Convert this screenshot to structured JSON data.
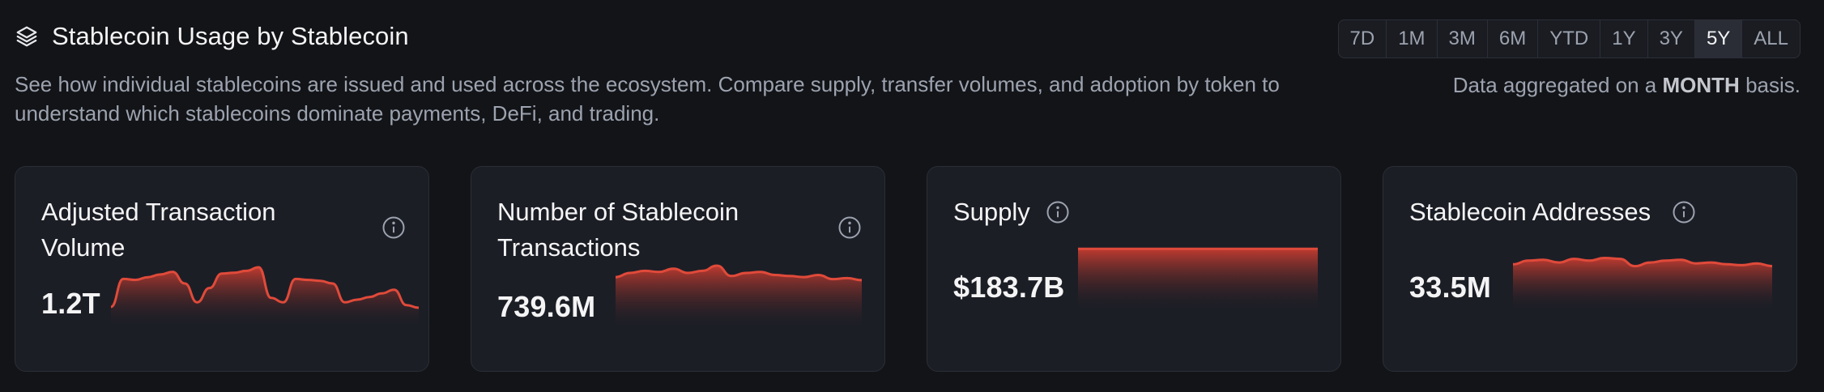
{
  "header": {
    "icon": "layers-icon",
    "title": "Stablecoin Usage by Stablecoin",
    "description": "See how individual stablecoins are issued and used across the ecosystem. Compare supply, transfer volumes, and adoption by token to understand which stablecoins dominate payments, DeFi, and trading.",
    "aggregation_prefix": "Data aggregated on a",
    "aggregation_period": "MONTH",
    "aggregation_suffix": "basis."
  },
  "ranges": {
    "options": [
      "7D",
      "1M",
      "3M",
      "6M",
      "YTD",
      "1Y",
      "3Y",
      "5Y",
      "ALL"
    ],
    "selected": "5Y"
  },
  "colors": {
    "background": "#131418",
    "card": "#1c1e26",
    "spark_line": "#e04a3a",
    "spark_fill_top": "#c73c30"
  },
  "cards": [
    {
      "title": "Adjusted Transaction Volume",
      "value": "1.2T",
      "icon": "info-icon",
      "spark": [
        0.2,
        0.82,
        0.8,
        0.86,
        0.92,
        0.98,
        0.72,
        0.3,
        0.62,
        0.94,
        0.96,
        1.0,
        1.08,
        0.4,
        0.3,
        0.82,
        0.8,
        0.78,
        0.72,
        0.3,
        0.36,
        0.42,
        0.5,
        0.58,
        0.24,
        0.18
      ]
    },
    {
      "title": "Number of Stablecoin Transactions",
      "value": "739.6M",
      "icon": "info-icon",
      "spark": [
        0.78,
        0.86,
        0.9,
        0.88,
        0.94,
        0.86,
        0.9,
        1.0,
        0.8,
        0.86,
        0.88,
        0.82,
        0.8,
        0.78,
        0.82,
        0.74,
        0.76,
        0.72
      ]
    },
    {
      "title": "Supply",
      "value": "$183.7B",
      "icon": "info-icon",
      "spark": [
        0.98,
        0.98,
        0.98,
        0.98,
        0.98,
        0.98,
        0.98,
        0.98,
        0.98,
        0.98
      ]
    },
    {
      "title": "Stablecoin Addresses",
      "value": "33.5M",
      "icon": "info-icon",
      "spark": [
        0.78,
        0.86,
        0.88,
        0.82,
        0.9,
        0.86,
        0.92,
        0.9,
        0.74,
        0.82,
        0.86,
        0.88,
        0.8,
        0.82,
        0.78,
        0.76,
        0.8,
        0.74
      ]
    }
  ]
}
